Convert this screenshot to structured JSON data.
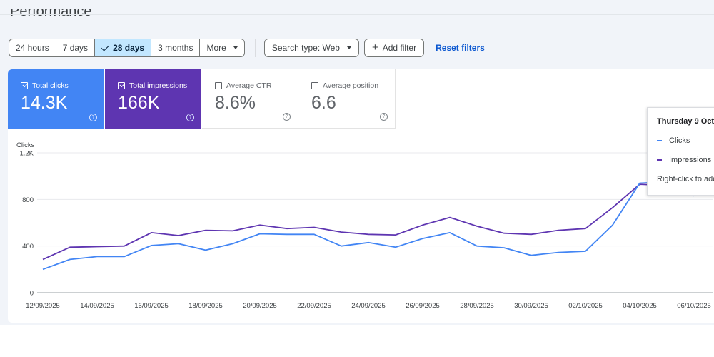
{
  "page": {
    "title": "Performance"
  },
  "toolbar": {
    "ranges": [
      "24 hours",
      "7 days",
      "28 days",
      "3 months"
    ],
    "active_range": "28 days",
    "more_label": "More",
    "search_type_label": "Search type: Web",
    "add_filter_label": "Add filter",
    "reset_filters_label": "Reset filters"
  },
  "metrics": {
    "clicks": {
      "label": "Total clicks",
      "value": "14.3K",
      "checked": true,
      "color": "#4285f4"
    },
    "impressions": {
      "label": "Total impressions",
      "value": "166K",
      "checked": true,
      "color": "#5e35b1"
    },
    "ctr": {
      "label": "Average CTR",
      "value": "8.6%",
      "checked": false
    },
    "position": {
      "label": "Average position",
      "value": "6.6",
      "checked": false
    }
  },
  "tooltip": {
    "date": "Thursday 9 Oct",
    "clicks_label": "Clicks",
    "impressions_label": "Impressions",
    "hint": "Right-click to add"
  },
  "chart_data": {
    "type": "line",
    "ylabel": "Clicks",
    "ylim": [
      0,
      1200
    ],
    "yticks": [
      "0",
      "400",
      "800",
      "1.2K"
    ],
    "ytick_values": [
      0,
      400,
      800,
      1200
    ],
    "xticks": [
      "12/09/2025",
      "14/09/2025",
      "16/09/2025",
      "18/09/2025",
      "20/09/2025",
      "22/09/2025",
      "24/09/2025",
      "26/09/2025",
      "28/09/2025",
      "30/09/2025",
      "02/10/2025",
      "04/10/2025",
      "06/10/2025"
    ],
    "grid": true,
    "series": [
      {
        "name": "Clicks",
        "color": "#4285f4",
        "values": [
          200,
          285,
          310,
          310,
          405,
          420,
          365,
          420,
          505,
          500,
          500,
          400,
          430,
          390,
          465,
          515,
          400,
          385,
          320,
          345,
          355,
          580,
          940,
          950,
          830
        ]
      },
      {
        "name": "Impressions",
        "color": "#5e35b1",
        "values": [
          285,
          390,
          395,
          400,
          515,
          490,
          535,
          530,
          580,
          550,
          560,
          520,
          500,
          495,
          580,
          645,
          570,
          510,
          500,
          535,
          550,
          730,
          930,
          920,
          860
        ]
      }
    ]
  }
}
